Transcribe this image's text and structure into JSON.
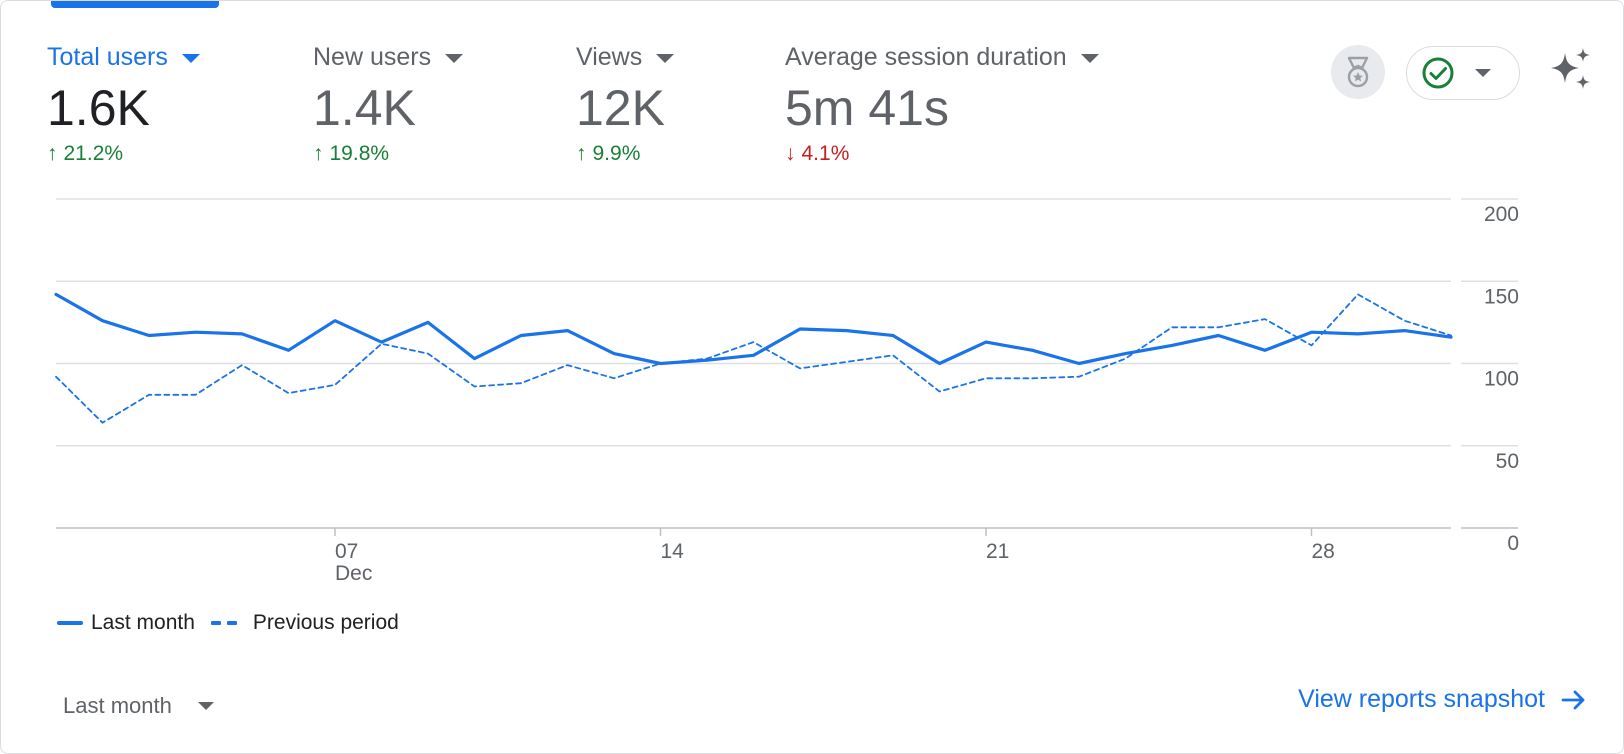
{
  "metrics": [
    {
      "label": "Total users",
      "value": "1.6K",
      "change": "21.2%",
      "direction": "up",
      "active": true
    },
    {
      "label": "New users",
      "value": "1.4K",
      "change": "19.8%",
      "direction": "up",
      "active": false
    },
    {
      "label": "Views",
      "value": "12K",
      "change": "9.9%",
      "direction": "up",
      "active": false
    },
    {
      "label": "Average session duration",
      "value": "5m 41s",
      "change": "4.1%",
      "direction": "down",
      "active": false
    }
  ],
  "icons": {
    "badge": "medal-icon",
    "status": "check-circle-icon",
    "ai": "sparkle-icon"
  },
  "colors": {
    "accent": "#1a73e8",
    "positive": "#188038",
    "negative": "#c5221f"
  },
  "chart_data": {
    "type": "line",
    "ylim": [
      0,
      200
    ],
    "yticks": [
      "0",
      "50",
      "100",
      "150",
      "200"
    ],
    "xticks": [
      {
        "index": 6,
        "label": "07",
        "sublabel": "Dec"
      },
      {
        "index": 13,
        "label": "14",
        "sublabel": ""
      },
      {
        "index": 20,
        "label": "21",
        "sublabel": ""
      },
      {
        "index": 27,
        "label": "28",
        "sublabel": ""
      }
    ],
    "series": [
      {
        "name": "Last month",
        "style": "solid",
        "values": [
          142,
          126,
          117,
          119,
          118,
          108,
          126,
          113,
          125,
          103,
          117,
          120,
          106,
          100,
          102,
          105,
          121,
          120,
          117,
          100,
          113,
          108,
          100,
          106,
          111,
          117,
          108,
          119,
          118,
          120,
          116
        ]
      },
      {
        "name": "Previous period",
        "style": "dashed",
        "values": [
          92,
          64,
          81,
          81,
          99,
          82,
          87,
          112,
          106,
          86,
          88,
          99,
          91,
          100,
          103,
          113,
          97,
          101,
          105,
          83,
          91,
          91,
          92,
          103,
          122,
          122,
          127,
          111,
          142,
          126,
          117
        ]
      }
    ],
    "grid": true
  },
  "legend": {
    "last_month": "Last month",
    "previous_period": "Previous period"
  },
  "footer": {
    "period_select": "Last month",
    "snapshot_link": "View reports snapshot"
  }
}
